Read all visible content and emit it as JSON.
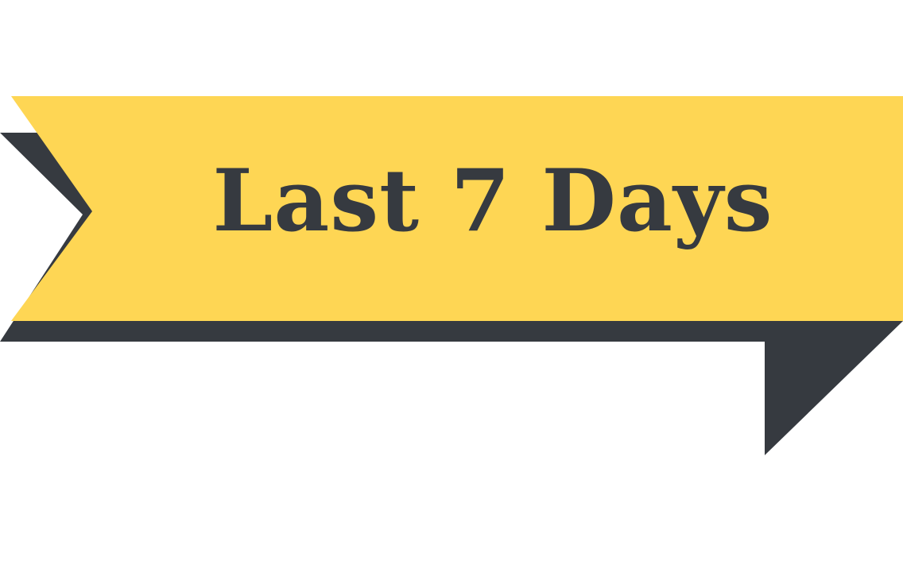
{
  "banner": {
    "label": "Last 7 Days",
    "colors": {
      "ribbon": "#fed654",
      "shadow": "#363a40",
      "text": "#363a40"
    }
  }
}
